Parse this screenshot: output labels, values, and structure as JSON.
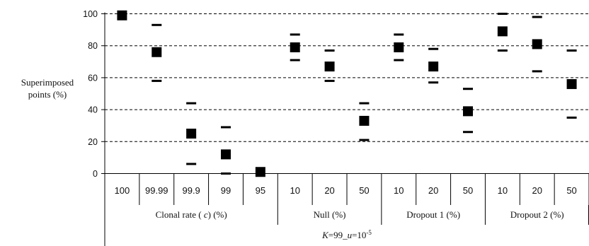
{
  "chart_data": {
    "type": "scatter",
    "ylabel_line1": "Superimposed",
    "ylabel_line2": "points (%)",
    "ylim": [
      0,
      100
    ],
    "yticks": [
      "0",
      "20",
      "40",
      "60",
      "80",
      "100"
    ],
    "grid": "horizontal dashed",
    "categories": [
      "100",
      "99.99",
      "99.9",
      "99",
      "95",
      "10",
      "20",
      "50",
      "10",
      "20",
      "50",
      "10",
      "20",
      "50"
    ],
    "groups": [
      {
        "label": "Clonal rate ( c) (%)",
        "label_prefix": "Clonal rate ( ",
        "label_italic": "c",
        "label_suffix": ") (%)",
        "count": 5
      },
      {
        "label": "Null (%)",
        "count": 3
      },
      {
        "label": "Dropout 1 (%)",
        "count": 3
      },
      {
        "label": "Dropout  2 (%)",
        "count": 3
      }
    ],
    "footer": {
      "k_var": "K",
      "k_text": "=99_",
      "u_var": "u",
      "u_text": "=10",
      "u_exp": "-5"
    },
    "series": [
      {
        "marker": "square",
        "values": [
          99,
          76,
          25,
          12,
          1,
          79,
          67,
          33,
          79,
          67,
          39,
          89,
          81,
          56
        ],
        "upper": [
          null,
          93,
          44,
          29,
          null,
          87,
          77,
          44,
          87,
          78,
          53,
          100,
          98,
          77
        ],
        "lower": [
          null,
          58,
          6,
          0,
          null,
          71,
          58,
          21,
          71,
          57,
          26,
          77,
          64,
          35
        ]
      }
    ],
    "colors": {
      "marker": "#000000",
      "grid": "#000000",
      "axis": "#000000"
    }
  }
}
